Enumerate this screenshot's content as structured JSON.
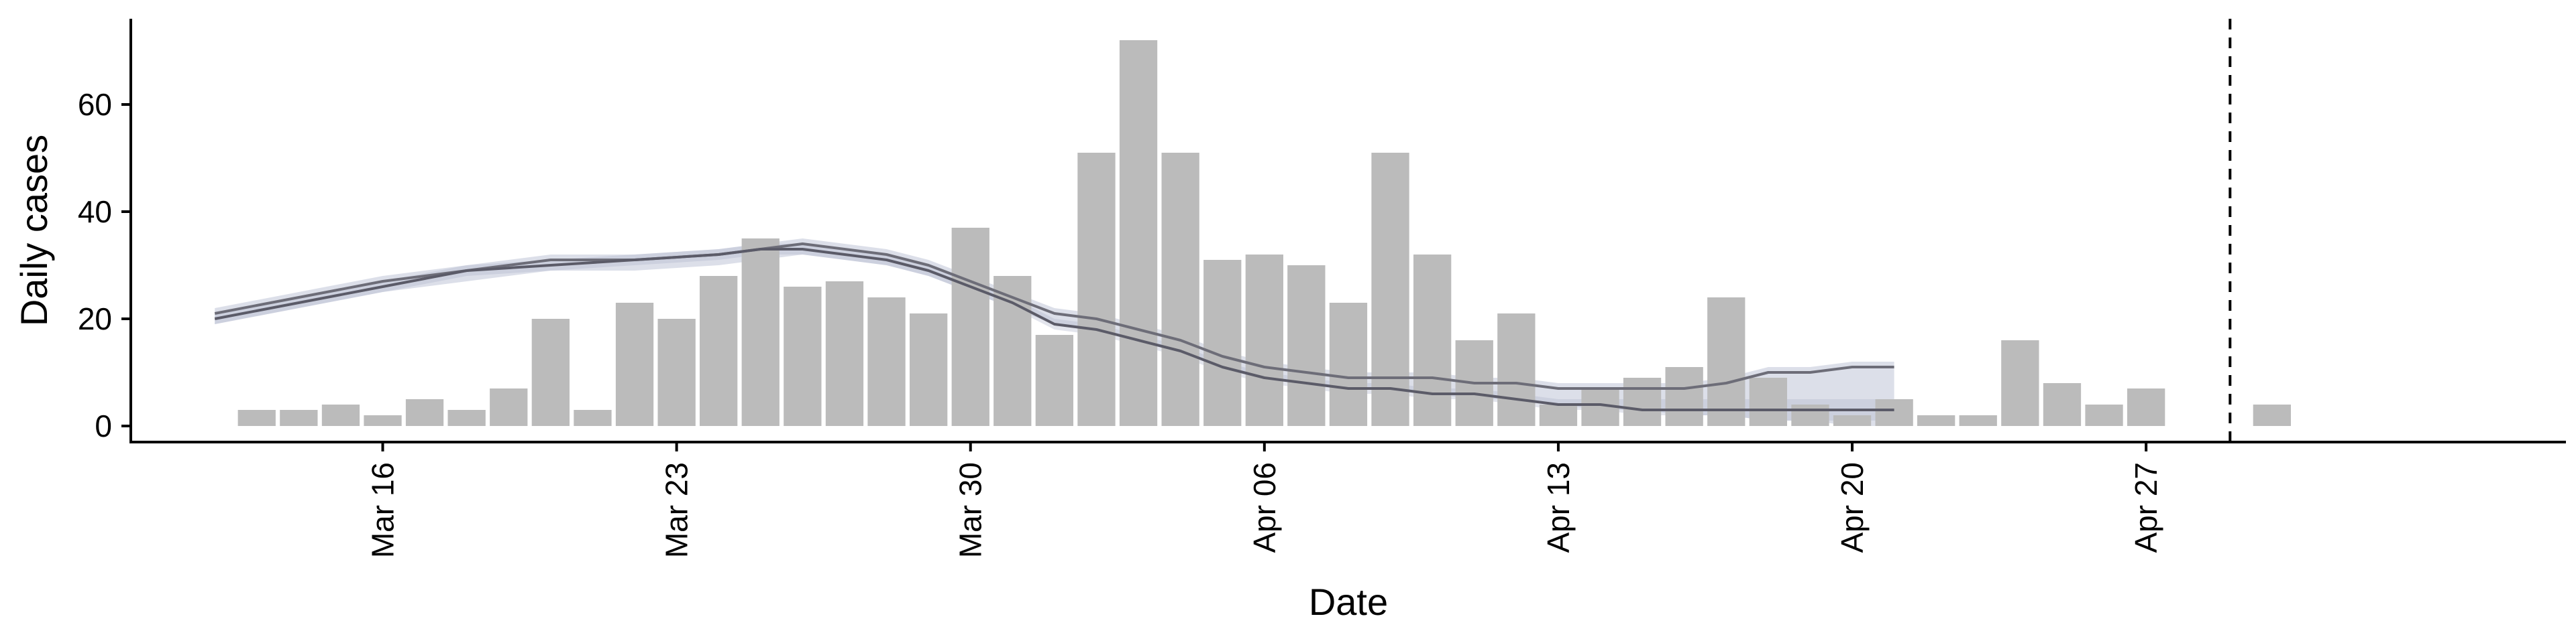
{
  "chart_data": {
    "type": "bar",
    "title": "",
    "xlabel": "Date",
    "ylabel": "Daily cases",
    "ylim": [
      -3,
      76
    ],
    "yticks": [
      0,
      20,
      40,
      60
    ],
    "xticks": [
      {
        "date": "2020-03-16",
        "label": "Mar 16"
      },
      {
        "date": "2020-03-23",
        "label": "Mar 23"
      },
      {
        "date": "2020-03-30",
        "label": "Mar 30"
      },
      {
        "date": "2020-04-06",
        "label": "Apr 06"
      },
      {
        "date": "2020-04-13",
        "label": "Apr 13"
      },
      {
        "date": "2020-04-20",
        "label": "Apr 20"
      },
      {
        "date": "2020-04-27",
        "label": "Apr 27"
      }
    ],
    "xlim": [
      "2020-03-10",
      "2020-05-07"
    ],
    "vline_date": "2020-04-29",
    "bars": {
      "color": "#bbbbbb",
      "dates": [
        "2020-03-13",
        "2020-03-14",
        "2020-03-15",
        "2020-03-16",
        "2020-03-17",
        "2020-03-18",
        "2020-03-19",
        "2020-03-20",
        "2020-03-21",
        "2020-03-22",
        "2020-03-23",
        "2020-03-24",
        "2020-03-25",
        "2020-03-26",
        "2020-03-27",
        "2020-03-28",
        "2020-03-29",
        "2020-03-30",
        "2020-03-31",
        "2020-04-01",
        "2020-04-02",
        "2020-04-03",
        "2020-04-04",
        "2020-04-05",
        "2020-04-06",
        "2020-04-07",
        "2020-04-08",
        "2020-04-09",
        "2020-04-10",
        "2020-04-11",
        "2020-04-12",
        "2020-04-13",
        "2020-04-14",
        "2020-04-15",
        "2020-04-16",
        "2020-04-17",
        "2020-04-18",
        "2020-04-19",
        "2020-04-20",
        "2020-04-21",
        "2020-04-22",
        "2020-04-23",
        "2020-04-24",
        "2020-04-25",
        "2020-04-26",
        "2020-04-27",
        "2020-04-28",
        "2020-04-30"
      ],
      "values": [
        3,
        3,
        4,
        2,
        5,
        3,
        7,
        20,
        3,
        23,
        20,
        28,
        35,
        26,
        27,
        24,
        21,
        37,
        28,
        17,
        51,
        72,
        51,
        31,
        32,
        30,
        23,
        51,
        32,
        16,
        21,
        4,
        7,
        9,
        11,
        24,
        9,
        4,
        2,
        5,
        2,
        2,
        16,
        8,
        4,
        7,
        0,
        4
      ]
    },
    "series": [
      {
        "color": "#6d6d78",
        "band_color": "#9aa2c0",
        "dates": [
          "2020-03-12",
          "2020-03-14",
          "2020-03-16",
          "2020-03-18",
          "2020-03-20",
          "2020-03-22",
          "2020-03-24",
          "2020-03-25",
          "2020-03-26",
          "2020-03-28",
          "2020-03-29",
          "2020-03-30",
          "2020-03-31",
          "2020-04-01",
          "2020-04-02",
          "2020-04-03",
          "2020-04-04",
          "2020-04-05",
          "2020-04-06",
          "2020-04-07",
          "2020-04-08",
          "2020-04-09",
          "2020-04-10",
          "2020-04-11",
          "2020-04-12",
          "2020-04-13",
          "2020-04-14",
          "2020-04-15",
          "2020-04-16",
          "2020-04-17",
          "2020-04-18",
          "2020-04-19",
          "2020-04-20",
          "2020-04-21"
        ],
        "values": [
          21,
          24,
          27,
          29,
          31,
          31,
          32,
          33,
          34,
          32,
          30,
          27,
          24,
          21,
          20,
          18,
          16,
          13,
          11,
          10,
          9,
          9,
          9,
          8,
          8,
          7,
          7,
          7,
          7,
          8,
          10,
          10,
          11,
          11
        ],
        "band_low": [
          19,
          22,
          25,
          27,
          29,
          29,
          30,
          31,
          32,
          30,
          28,
          25,
          22,
          19,
          18,
          16,
          14,
          11,
          9,
          8,
          7,
          7,
          6,
          5,
          5,
          4,
          3,
          3,
          2,
          2,
          1,
          1,
          0,
          0
        ],
        "band_high": [
          22,
          25,
          28,
          30,
          32,
          32,
          33,
          34,
          35,
          33,
          31,
          28,
          25,
          22,
          21,
          19,
          17,
          14,
          12,
          11,
          10,
          10,
          10,
          9,
          9,
          8,
          8,
          8,
          8,
          9,
          11,
          11,
          12,
          12
        ]
      },
      {
        "color": "#5b5b68",
        "band_color": "#aeb4cc",
        "dates": [
          "2020-03-12",
          "2020-03-14",
          "2020-03-16",
          "2020-03-18",
          "2020-03-20",
          "2020-03-22",
          "2020-03-24",
          "2020-03-25",
          "2020-03-26",
          "2020-03-28",
          "2020-03-29",
          "2020-03-30",
          "2020-03-31",
          "2020-04-01",
          "2020-04-02",
          "2020-04-03",
          "2020-04-04",
          "2020-04-05",
          "2020-04-06",
          "2020-04-07",
          "2020-04-08",
          "2020-04-09",
          "2020-04-10",
          "2020-04-11",
          "2020-04-12",
          "2020-04-13",
          "2020-04-14",
          "2020-04-15",
          "2020-04-16",
          "2020-04-17",
          "2020-04-18",
          "2020-04-19",
          "2020-04-20",
          "2020-04-21"
        ],
        "values": [
          20,
          23,
          26,
          29,
          30,
          31,
          32,
          33,
          33,
          31,
          29,
          26,
          23,
          19,
          18,
          16,
          14,
          11,
          9,
          8,
          7,
          7,
          6,
          6,
          5,
          4,
          4,
          3,
          3,
          3,
          3,
          3,
          3,
          3
        ],
        "band_low": [
          19,
          22,
          25,
          28,
          29,
          30,
          31,
          32,
          32,
          30,
          28,
          25,
          22,
          18,
          17,
          15,
          13,
          10,
          8,
          7,
          6,
          6,
          5,
          5,
          4,
          3,
          3,
          2,
          2,
          2,
          1,
          1,
          1,
          1
        ],
        "band_high": [
          21,
          24,
          27,
          30,
          31,
          32,
          33,
          34,
          34,
          32,
          30,
          27,
          24,
          20,
          19,
          17,
          15,
          12,
          10,
          9,
          8,
          8,
          7,
          7,
          6,
          5,
          5,
          5,
          5,
          5,
          5,
          5,
          5,
          5
        ]
      }
    ]
  }
}
